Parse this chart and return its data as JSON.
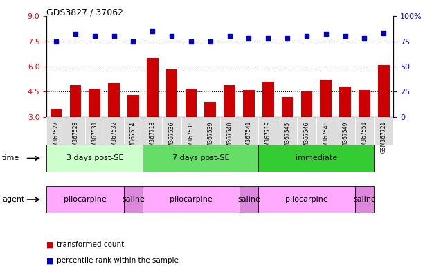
{
  "title": "GDS3827 / 37062",
  "samples": [
    "GSM367527",
    "GSM367528",
    "GSM367531",
    "GSM367532",
    "GSM367534",
    "GSM367718",
    "GSM367536",
    "GSM367538",
    "GSM367539",
    "GSM367540",
    "GSM367541",
    "GSM367719",
    "GSM367545",
    "GSM367546",
    "GSM367548",
    "GSM367549",
    "GSM367551",
    "GSM367721"
  ],
  "bar_values": [
    3.5,
    4.9,
    4.7,
    5.0,
    4.3,
    6.5,
    5.85,
    4.7,
    3.9,
    4.9,
    4.6,
    5.1,
    4.2,
    4.5,
    5.2,
    4.8,
    4.6,
    6.1
  ],
  "dot_values": [
    75,
    82,
    80,
    80,
    75,
    85,
    80,
    75,
    75,
    80,
    78,
    78,
    78,
    80,
    82,
    80,
    78,
    83
  ],
  "bar_color": "#cc0000",
  "dot_color": "#0000cc",
  "ylim_left": [
    3,
    9
  ],
  "ylim_right": [
    0,
    100
  ],
  "yticks_left": [
    3,
    4.5,
    6,
    7.5,
    9
  ],
  "yticks_right": [
    0,
    25,
    50,
    75,
    100
  ],
  "hlines": [
    4.5,
    6.0,
    7.5
  ],
  "time_groups": [
    {
      "label": "3 days post-SE",
      "start": 0,
      "end": 5,
      "color": "#ccffcc"
    },
    {
      "label": "7 days post-SE",
      "start": 5,
      "end": 11,
      "color": "#66dd66"
    },
    {
      "label": "immediate",
      "start": 11,
      "end": 17,
      "color": "#33cc33"
    }
  ],
  "agent_groups": [
    {
      "label": "pilocarpine",
      "start": 0,
      "end": 4,
      "color": "#ffaaff"
    },
    {
      "label": "saline",
      "start": 4,
      "end": 5,
      "color": "#dd88dd"
    },
    {
      "label": "pilocarpine",
      "start": 5,
      "end": 10,
      "color": "#ffaaff"
    },
    {
      "label": "saline",
      "start": 10,
      "end": 11,
      "color": "#dd88dd"
    },
    {
      "label": "pilocarpine",
      "start": 11,
      "end": 16,
      "color": "#ffaaff"
    },
    {
      "label": "saline",
      "start": 16,
      "end": 17,
      "color": "#dd88dd"
    }
  ],
  "n_samples": 18,
  "legend_items": [
    {
      "label": "transformed count",
      "color": "#cc0000"
    },
    {
      "label": "percentile rank within the sample",
      "color": "#0000cc"
    }
  ],
  "time_label": "time",
  "agent_label": "agent"
}
